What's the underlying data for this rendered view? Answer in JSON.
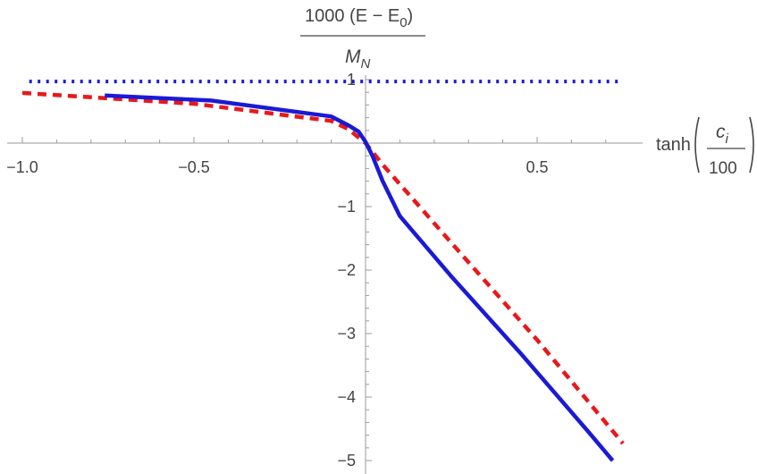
{
  "chart_data": {
    "type": "line",
    "ylabel": {
      "numerator": "1000 (E − E",
      "numerator_sub": "0",
      "numerator_close": ")",
      "denominator": "M",
      "denominator_sub": "N"
    },
    "xlabel": {
      "prefix": "tanh",
      "numerator": "c",
      "numerator_sub": "i",
      "denominator": "100"
    },
    "xlim": [
      -1.0,
      0.75
    ],
    "ylim": [
      -5.0,
      1.0
    ],
    "x_ticks": [
      {
        "value": -1.0,
        "label": "−1.0"
      },
      {
        "value": -0.5,
        "label": "−0.5"
      },
      {
        "value": 0.5,
        "label": "0.5"
      }
    ],
    "y_ticks": [
      {
        "value": 1,
        "label": "1"
      },
      {
        "value": -1,
        "label": "−1"
      },
      {
        "value": -2,
        "label": "−2"
      },
      {
        "value": -3,
        "label": "−3"
      },
      {
        "value": -4,
        "label": "−4"
      },
      {
        "value": -5,
        "label": "−5"
      }
    ],
    "x_minor_step": 0.1,
    "y_minor_step": 0.2,
    "grid": false,
    "series": [
      {
        "style": "dotted",
        "color": "#1a1ad6",
        "points": [
          [
            -0.98,
            0.97
          ],
          [
            0.75,
            0.97
          ]
        ]
      },
      {
        "style": "dashed",
        "color": "#e8191b",
        "points": [
          [
            -1.0,
            0.79
          ],
          [
            -0.5,
            0.62
          ],
          [
            -0.1,
            0.35
          ],
          [
            -0.05,
            0.22
          ],
          [
            0.0,
            0.0
          ],
          [
            0.05,
            -0.34
          ],
          [
            0.25,
            -1.57
          ],
          [
            0.5,
            -3.1
          ],
          [
            0.75,
            -4.73
          ]
        ]
      },
      {
        "style": "solid",
        "color": "#1a1ad6",
        "points": [
          [
            -0.76,
            0.75
          ],
          [
            -0.45,
            0.67
          ],
          [
            -0.1,
            0.42
          ],
          [
            -0.05,
            0.28
          ],
          [
            -0.02,
            0.18
          ],
          [
            0.0,
            0.02
          ],
          [
            0.02,
            -0.2
          ],
          [
            0.05,
            -0.6
          ],
          [
            0.1,
            -1.15
          ],
          [
            0.25,
            -2.1
          ],
          [
            0.45,
            -3.3
          ],
          [
            0.65,
            -4.55
          ],
          [
            0.72,
            -5.0
          ]
        ]
      }
    ]
  }
}
